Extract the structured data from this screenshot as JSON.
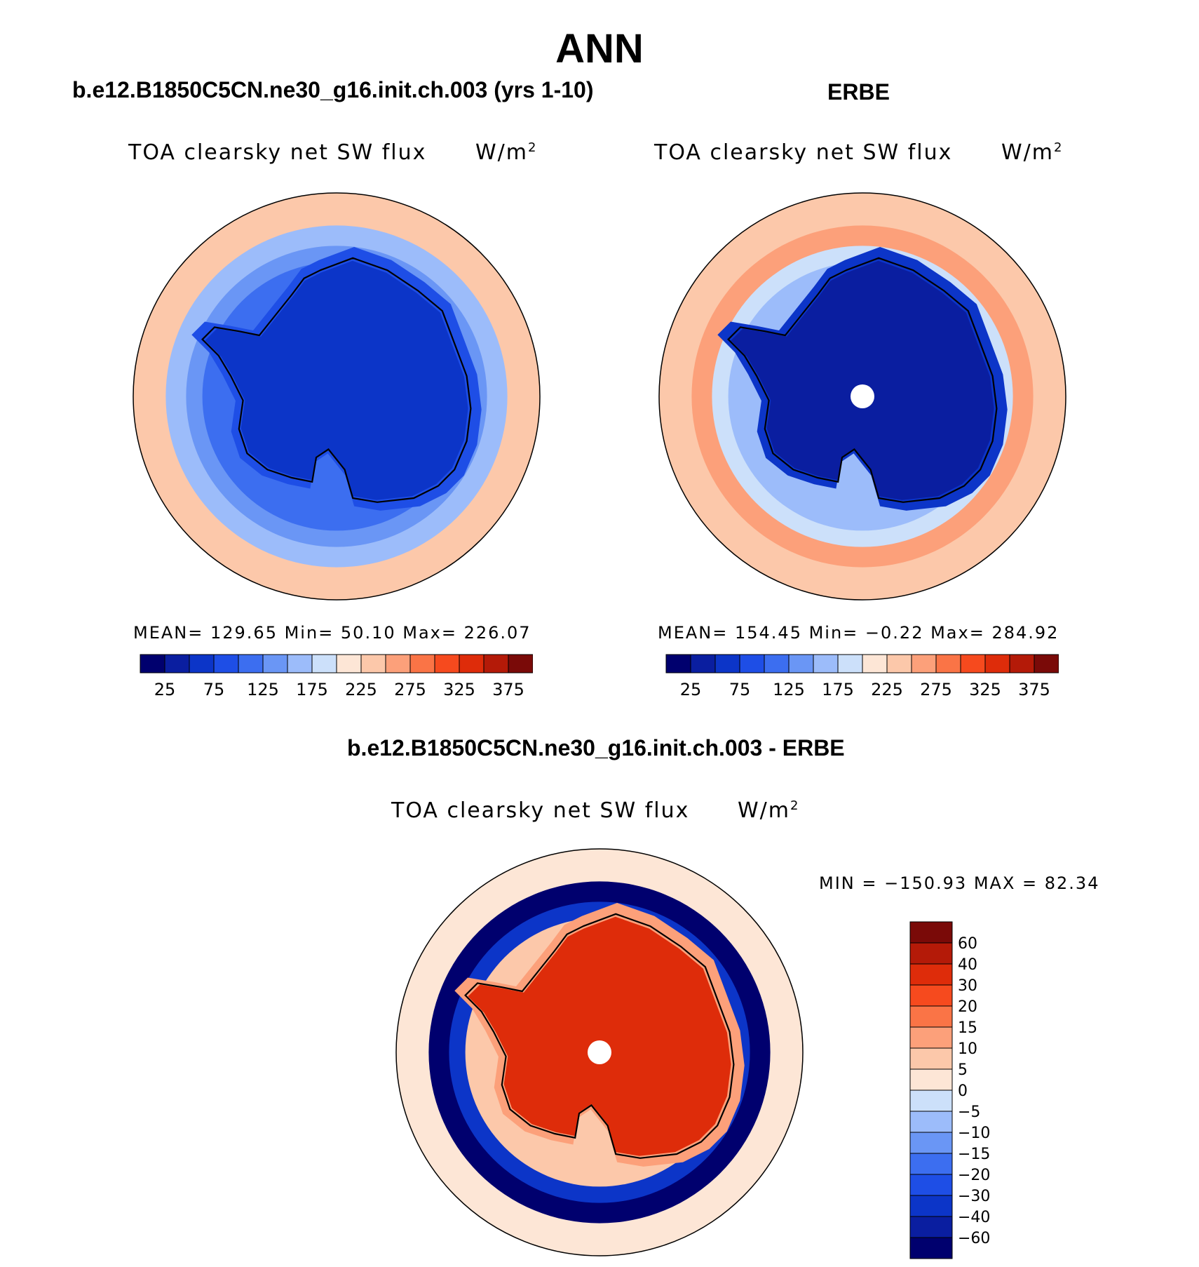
{
  "main_title": "ANN",
  "panels": [
    {
      "case_title": "b.e12.B1850C5CN.ne30_g16.init.ch.003 (yrs 1-10)",
      "variable": "TOA clearsky net SW flux",
      "units": "W/m",
      "units_sup": "2",
      "stats": "MEAN=  129.65    Min=    50.10    Max=  226.07"
    },
    {
      "case_title": "ERBE",
      "variable": "TOA clearsky net SW flux",
      "units": "W/m",
      "units_sup": "2",
      "stats": "MEAN=  154.45    Min=    −0.22    Max=  284.92"
    },
    {
      "case_title": "b.e12.B1850C5CN.ne30_g16.init.ch.003 - ERBE",
      "variable": "TOA clearsky net SW flux",
      "units": "W/m",
      "units_sup": "2",
      "stats": "MIN  =  −150.93  MAX  =     82.34"
    }
  ],
  "chart_data": [
    {
      "type": "heatmap",
      "title": "b.e12.B1850C5CN.ne30_g16.init.ch.003 (yrs 1-10)",
      "variable": "TOA clearsky net SW flux",
      "units": "W/m2",
      "projection": "south polar stereographic",
      "mean": 129.65,
      "min": 50.1,
      "max": 226.07,
      "levels": [
        0,
        25,
        50,
        75,
        100,
        125,
        150,
        175,
        200,
        225,
        250,
        275,
        300,
        325,
        350,
        375,
        400
      ],
      "tick_labels": [
        "25",
        "75",
        "125",
        "175",
        "225",
        "275",
        "325",
        "375"
      ],
      "colors": [
        "#00006e",
        "#0a1ea0",
        "#0c35c8",
        "#1e4ee6",
        "#3c6ef0",
        "#6a96f5",
        "#9cbcfa",
        "#cce0fa",
        "#fde6d6",
        "#fcc8aa",
        "#fca07a",
        "#fa7446",
        "#f64a1e",
        "#de2c0a",
        "#b41a08",
        "#7a0a08"
      ],
      "region_values": [
        230,
        165,
        140,
        115,
        90,
        70
      ]
    },
    {
      "type": "heatmap",
      "title": "ERBE",
      "variable": "TOA clearsky net SW flux",
      "units": "W/m2",
      "projection": "south polar stereographic",
      "mean": 154.45,
      "min": -0.22,
      "max": 284.92,
      "levels": [
        0,
        25,
        50,
        75,
        100,
        125,
        150,
        175,
        200,
        225,
        250,
        275,
        300,
        325,
        350,
        375,
        400
      ],
      "tick_labels": [
        "25",
        "75",
        "125",
        "175",
        "225",
        "275",
        "325",
        "375"
      ],
      "colors": [
        "#00006e",
        "#0a1ea0",
        "#0c35c8",
        "#1e4ee6",
        "#3c6ef0",
        "#6a96f5",
        "#9cbcfa",
        "#cce0fa",
        "#fde6d6",
        "#fcc8aa",
        "#fca07a",
        "#fa7446",
        "#f64a1e",
        "#de2c0a",
        "#b41a08",
        "#7a0a08"
      ],
      "region_values": [
        235,
        250,
        185,
        160,
        55,
        40
      ]
    },
    {
      "type": "heatmap",
      "title": "b.e12.B1850C5CN.ne30_g16.init.ch.003 - ERBE",
      "variable": "TOA clearsky net SW flux",
      "units": "W/m2",
      "projection": "south polar stereographic",
      "min": -150.93,
      "max": 82.34,
      "levels": [
        -80,
        -60,
        -40,
        -30,
        -20,
        -15,
        -10,
        -5,
        0,
        5,
        10,
        15,
        20,
        30,
        40,
        60,
        80
      ],
      "tick_labels": [
        "60",
        "40",
        "30",
        "20",
        "15",
        "10",
        "5",
        "0",
        "−5",
        "−10",
        "−15",
        "−20",
        "−30",
        "−40",
        "−60"
      ],
      "colors": [
        "#00006e",
        "#0a1ea0",
        "#0c35c8",
        "#1e4ee6",
        "#3c6ef0",
        "#6a96f5",
        "#9cbcfa",
        "#cce0fa",
        "#fde6d6",
        "#fcc8aa",
        "#fca07a",
        "#fa7446",
        "#f64a1e",
        "#de2c0a",
        "#b41a08",
        "#7a0a08"
      ],
      "region_values": [
        2,
        -70,
        -35,
        8,
        12,
        30
      ]
    }
  ]
}
